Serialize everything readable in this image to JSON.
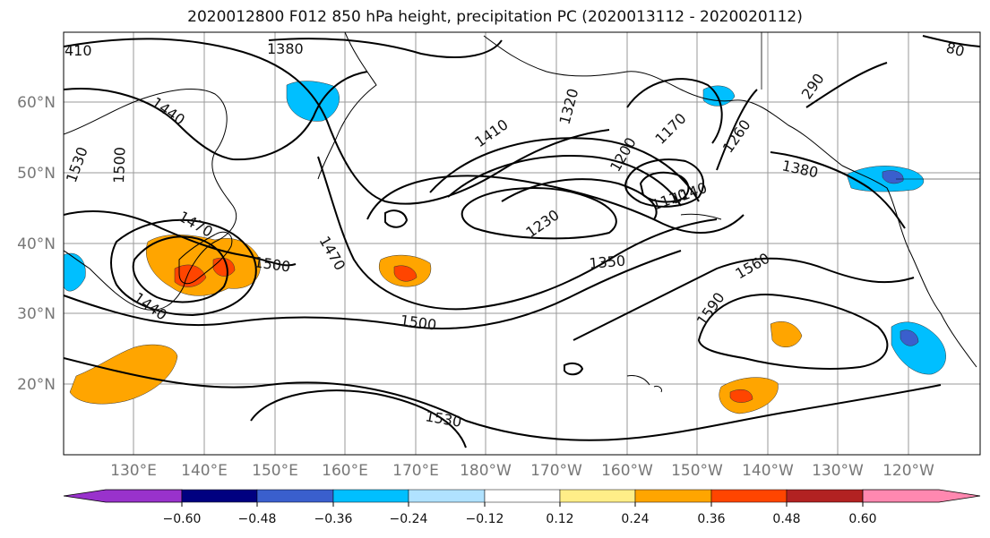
{
  "title": "2020012800 F012 850 hPa height, precipitation PC (2020013112 - 2020020112)",
  "lat_labels": [
    "60°N",
    "50°N",
    "40°N",
    "30°N",
    "20°N"
  ],
  "lon_labels": [
    "130°E",
    "140°E",
    "150°E",
    "160°E",
    "170°E",
    "180°W",
    "170°W",
    "160°W",
    "150°W",
    "140°W",
    "130°W",
    "120°W"
  ],
  "contour_labels": [
    "410",
    "1380",
    "1440",
    "1530",
    "1500",
    "1410",
    "1320",
    "1170",
    "1200",
    "1260",
    "290",
    "1380",
    "1110",
    "1140",
    "1230",
    "1350",
    "1470",
    "1560",
    "1590",
    "1500",
    "1440",
    "1470",
    "1500",
    "1530",
    "80"
  ],
  "colorbar": {
    "colors": [
      "#9932cc",
      "#000080",
      "#3a5fcd",
      "#00bfff",
      "#b0e2ff",
      "#ffffff",
      "#ffee88",
      "#ffa500",
      "#ff4500",
      "#b22222",
      "#ff88b0"
    ],
    "tick_labels": [
      "−0.60",
      "−0.48",
      "−0.36",
      "−0.24",
      "−0.12",
      "0.12",
      "0.24",
      "0.36",
      "0.48",
      "0.60"
    ]
  }
}
